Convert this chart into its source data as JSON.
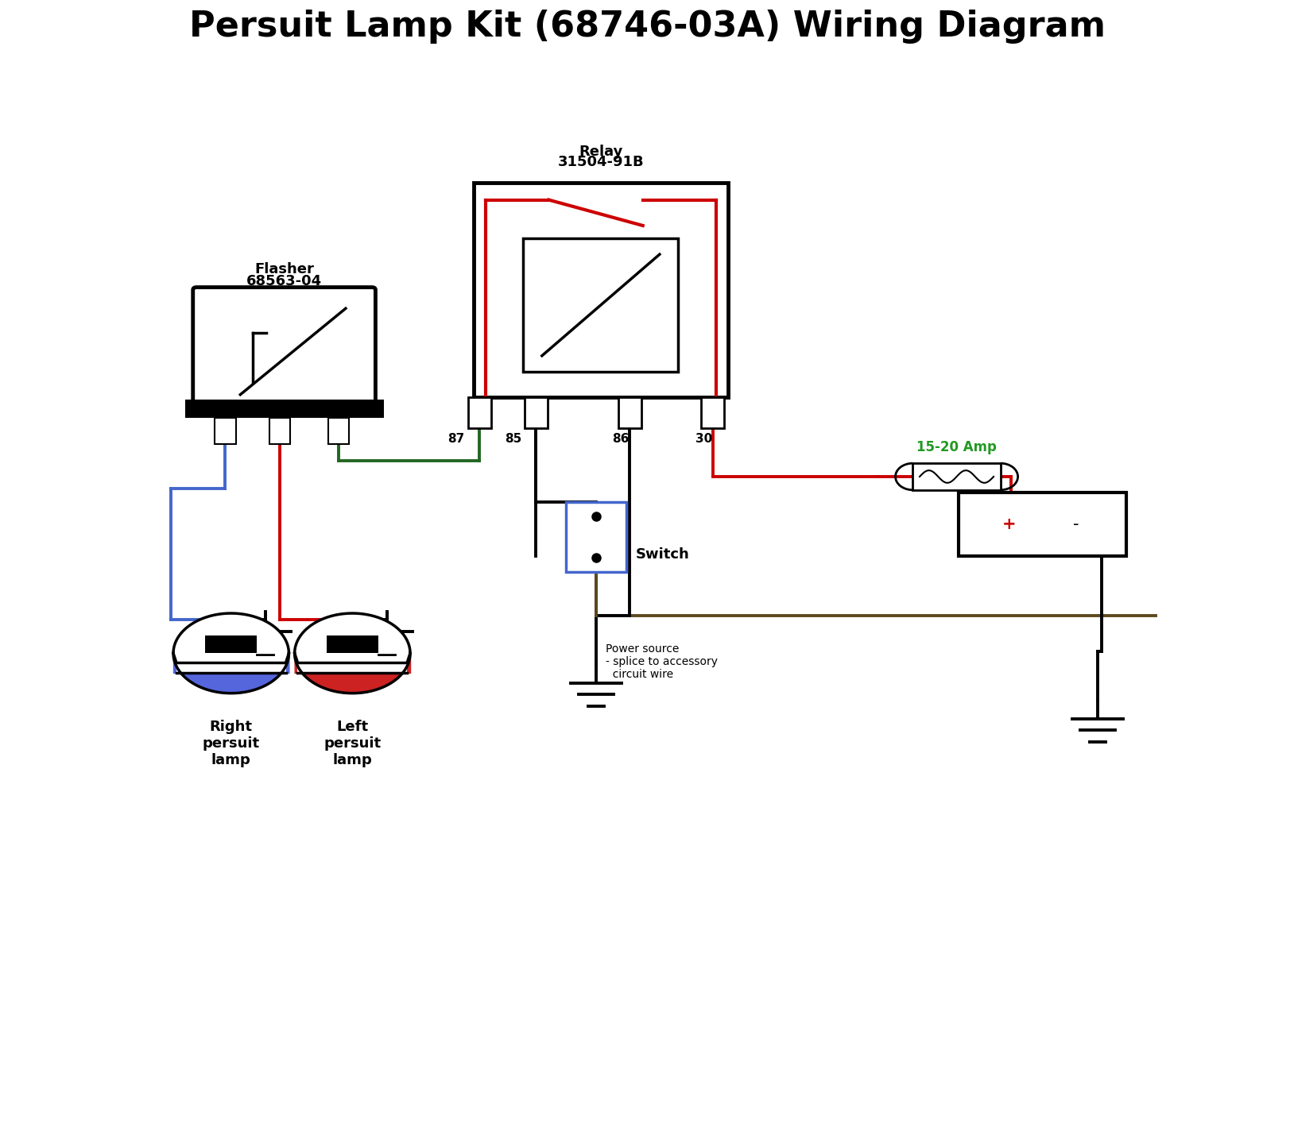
{
  "title": "Persuit Lamp Kit (68746-03A) Wiring Diagram",
  "relay_label_line1": "Relay",
  "relay_label_line2": "31504-91B",
  "flasher_label_line1": "Flasher",
  "flasher_label_line2": "68563-04",
  "switch_label": "Switch",
  "fuse_label": "15-20 Amp",
  "power_source_label": "Power source\n- splice to accessory\n  circuit wire",
  "right_lamp_label": "Right\npersuit\nlamp",
  "left_lamp_label": "Left\npersuit\nlamp",
  "pin_labels": [
    "87",
    "85",
    "86",
    "30"
  ],
  "bg_color": "#ffffff",
  "black": "#000000",
  "red": "#cc0000",
  "blue": "#4466cc",
  "green": "#226622",
  "dark_olive": "#5c4a1e",
  "fuse_green": "#229922",
  "lamp_blue": "#5566dd",
  "lamp_red": "#cc2222",
  "battery_plus_color": "#cc0000",
  "fig_w": 16.28,
  "fig_h": 14.2,
  "dpi": 100
}
